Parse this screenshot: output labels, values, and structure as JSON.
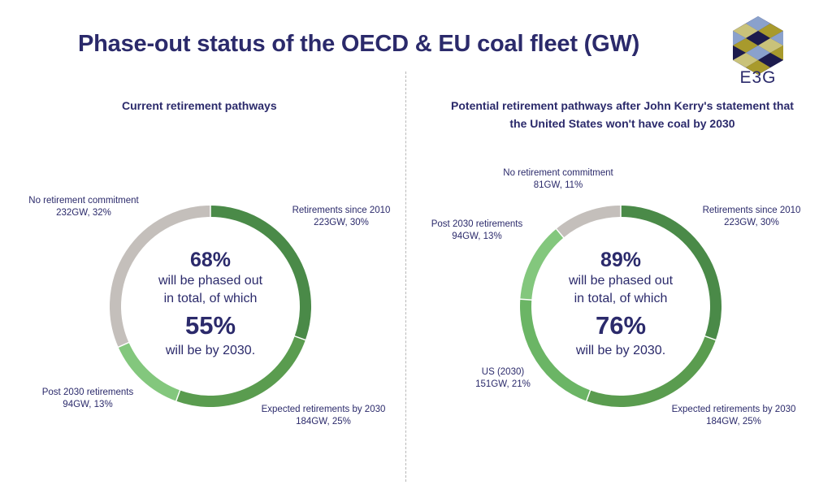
{
  "title": "Phase-out status of the OECD & EU coal fleet (GW)",
  "logo": {
    "text": "E3G"
  },
  "colors": {
    "retirements_since_2010": "#4a8a48",
    "expected_retirements_2030": "#5a9c4f",
    "us_2030": "#6bb565",
    "post_2030": "#83c77d",
    "no_commitment": "#c4bfbb",
    "text": "#2b2a6b"
  },
  "chart_data": [
    {
      "type": "pie",
      "title_lines": [
        "Current retirement pathways"
      ],
      "slices": [
        {
          "label": "Retirements since 2010",
          "value_text": "223GW, 30%",
          "gw": 223,
          "percent": 30,
          "color": "#4a8a48"
        },
        {
          "label": "Expected retirements by 2030",
          "value_text": "184GW, 25%",
          "gw": 184,
          "percent": 25,
          "color": "#5a9c4f"
        },
        {
          "label": "Post 2030 retirements",
          "value_text": "94GW, 13%",
          "gw": 94,
          "percent": 13,
          "color": "#83c77d"
        },
        {
          "label": "No retirement commitment",
          "value_text": "232GW, 32%",
          "gw": 232,
          "percent": 32,
          "color": "#c4bfbb"
        }
      ],
      "center": {
        "total_pct": "68%",
        "line1": "will be phased out",
        "line2": "in total, of which",
        "by2030_pct": "55%",
        "line3": "will be by 2030."
      }
    },
    {
      "type": "pie",
      "title_lines": [
        "Potential retirement pathways after John Kerry's statement that",
        "the United States won't have coal by 2030"
      ],
      "slices": [
        {
          "label": "Retirements since 2010",
          "value_text": "223GW, 30%",
          "gw": 223,
          "percent": 30,
          "color": "#4a8a48"
        },
        {
          "label": "Expected retirements by 2030",
          "value_text": "184GW, 25%",
          "gw": 184,
          "percent": 25,
          "color": "#5a9c4f"
        },
        {
          "label": "US (2030)",
          "value_text": "151GW, 21%",
          "gw": 151,
          "percent": 21,
          "color": "#6bb565"
        },
        {
          "label": "Post 2030 retirements",
          "value_text": "94GW, 13%",
          "gw": 94,
          "percent": 13,
          "color": "#83c77d"
        },
        {
          "label": "No retirement commitment",
          "value_text": "81GW, 11%",
          "gw": 81,
          "percent": 11,
          "color": "#c4bfbb"
        }
      ],
      "center": {
        "total_pct": "89%",
        "line1": "will be phased out",
        "line2": "in total, of which",
        "by2030_pct": "76%",
        "line3": "will be by 2030."
      }
    }
  ]
}
